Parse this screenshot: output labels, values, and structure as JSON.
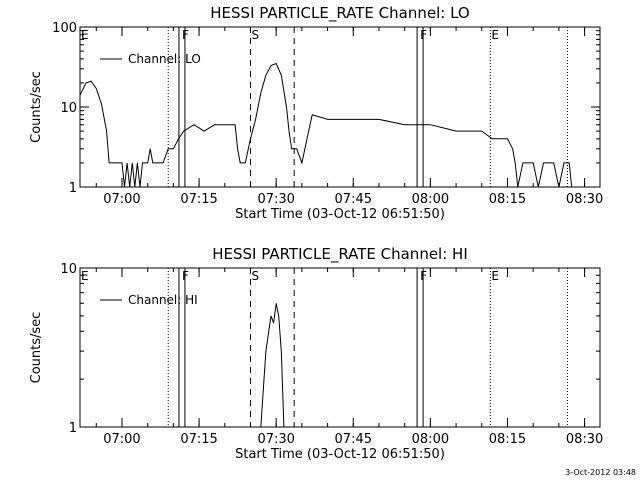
{
  "footer_timestamp": "3-Oct-2012 03:48",
  "chart_data": [
    {
      "type": "line",
      "title": "HESSI PARTICLE_RATE Channel: LO",
      "xlabel": "Start Time (03-Oct-12 06:51:50)",
      "ylabel": "Counts/sec",
      "yscale": "log",
      "ylim": [
        1,
        100
      ],
      "xlim": [
        "06:51:50",
        "08:33:00"
      ],
      "ytick_labels": [
        "1",
        "10",
        "100"
      ],
      "xtick_labels": [
        "07:00",
        "07:15",
        "07:30",
        "07:45",
        "08:00",
        "08:15",
        "08:30"
      ],
      "legend": {
        "position": "top-left",
        "entry": "Channel: LO"
      },
      "markers": [
        {
          "label": "E",
          "time": "06:51:50",
          "style": "dotted"
        },
        {
          "label": "",
          "time": "07:09:00",
          "style": "dotted"
        },
        {
          "label": "F",
          "time": "07:11:40",
          "style": "double-solid"
        },
        {
          "label": "S",
          "time": "07:25:00",
          "style": "dashed"
        },
        {
          "label": "",
          "time": "07:33:30",
          "style": "dashed"
        },
        {
          "label": "F",
          "time": "07:58:00",
          "style": "double-solid"
        },
        {
          "label": "E",
          "time": "08:11:40",
          "style": "dotted"
        },
        {
          "label": "",
          "time": "08:26:40",
          "style": "dotted"
        }
      ],
      "series": [
        {
          "name": "Channel: LO",
          "points": [
            [
              "06:51:50",
              14
            ],
            [
              "06:53:00",
              20
            ],
            [
              "06:54:00",
              21
            ],
            [
              "06:55:00",
              17
            ],
            [
              "06:56:00",
              11
            ],
            [
              "06:57:00",
              5
            ],
            [
              "06:57:30",
              2
            ],
            [
              "06:58:00",
              2
            ],
            [
              "06:59:00",
              2
            ],
            [
              "07:00:00",
              2
            ],
            [
              "07:00:30",
              1
            ],
            [
              "07:01:00",
              2
            ],
            [
              "07:01:30",
              1
            ],
            [
              "07:02:00",
              2
            ],
            [
              "07:02:30",
              1
            ],
            [
              "07:03:00",
              2
            ],
            [
              "07:03:30",
              1
            ],
            [
              "07:04:00",
              2
            ],
            [
              "07:05:00",
              2
            ],
            [
              "07:05:30",
              3
            ],
            [
              "07:06:00",
              2
            ],
            [
              "07:08:00",
              2
            ],
            [
              "07:09:00",
              3
            ],
            [
              "07:10:00",
              3
            ],
            [
              "07:11:00",
              4
            ],
            [
              "07:12:00",
              5
            ],
            [
              "07:14:00",
              6
            ],
            [
              "07:16:00",
              5
            ],
            [
              "07:18:00",
              6
            ],
            [
              "07:20:00",
              6
            ],
            [
              "07:22:00",
              6
            ],
            [
              "07:22:30",
              3
            ],
            [
              "07:23:00",
              2
            ],
            [
              "07:24:00",
              2
            ],
            [
              "07:25:00",
              4
            ],
            [
              "07:26:00",
              7
            ],
            [
              "07:27:00",
              15
            ],
            [
              "07:28:00",
              25
            ],
            [
              "07:29:00",
              33
            ],
            [
              "07:30:00",
              35
            ],
            [
              "07:31:00",
              25
            ],
            [
              "07:32:00",
              10
            ],
            [
              "07:32:30",
              5
            ],
            [
              "07:33:00",
              3
            ],
            [
              "07:34:00",
              3
            ],
            [
              "07:35:00",
              2
            ],
            [
              "07:36:00",
              4
            ],
            [
              "07:37:00",
              8
            ],
            [
              "07:40:00",
              7
            ],
            [
              "07:45:00",
              7
            ],
            [
              "07:50:00",
              7
            ],
            [
              "07:55:00",
              6
            ],
            [
              "08:00:00",
              6
            ],
            [
              "08:05:00",
              5
            ],
            [
              "08:10:00",
              5
            ],
            [
              "08:12:00",
              4
            ],
            [
              "08:15:00",
              4
            ],
            [
              "08:16:00",
              3
            ],
            [
              "08:16:30",
              2
            ],
            [
              "08:17:00",
              1
            ],
            [
              "08:18:00",
              2
            ],
            [
              "08:19:00",
              2
            ],
            [
              "08:20:00",
              2
            ],
            [
              "08:21:00",
              1
            ],
            [
              "08:22:00",
              2
            ],
            [
              "08:23:00",
              2
            ],
            [
              "08:24:00",
              2
            ],
            [
              "08:25:00",
              1
            ],
            [
              "08:26:00",
              2
            ],
            [
              "08:27:00",
              2
            ],
            [
              "08:27:30",
              1
            ]
          ]
        }
      ]
    },
    {
      "type": "line",
      "title": "HESSI PARTICLE_RATE Channel: HI",
      "xlabel": "Start Time (03-Oct-12 06:51:50)",
      "ylabel": "Counts/sec",
      "yscale": "log",
      "ylim": [
        1,
        10
      ],
      "xlim": [
        "06:51:50",
        "08:33:00"
      ],
      "ytick_labels": [
        "1",
        "10"
      ],
      "xtick_labels": [
        "07:00",
        "07:15",
        "07:30",
        "07:45",
        "08:00",
        "08:15",
        "08:30"
      ],
      "legend": {
        "position": "top-left",
        "entry": "Channel: HI"
      },
      "markers": [
        {
          "label": "E",
          "time": "06:51:50",
          "style": "dotted"
        },
        {
          "label": "",
          "time": "07:09:00",
          "style": "dotted"
        },
        {
          "label": "F",
          "time": "07:11:40",
          "style": "double-solid"
        },
        {
          "label": "S",
          "time": "07:25:00",
          "style": "dashed"
        },
        {
          "label": "",
          "time": "07:33:30",
          "style": "dashed"
        },
        {
          "label": "F",
          "time": "07:58:00",
          "style": "double-solid"
        },
        {
          "label": "E",
          "time": "08:11:40",
          "style": "dotted"
        },
        {
          "label": "",
          "time": "08:26:40",
          "style": "dotted"
        }
      ],
      "series": [
        {
          "name": "Channel: HI",
          "points": [
            [
              "07:27:00",
              1
            ],
            [
              "07:28:00",
              3
            ],
            [
              "07:29:00",
              5
            ],
            [
              "07:29:30",
              4.5
            ],
            [
              "07:30:00",
              6
            ],
            [
              "07:30:30",
              5
            ],
            [
              "07:31:00",
              3
            ],
            [
              "07:31:30",
              1
            ]
          ]
        }
      ]
    }
  ]
}
